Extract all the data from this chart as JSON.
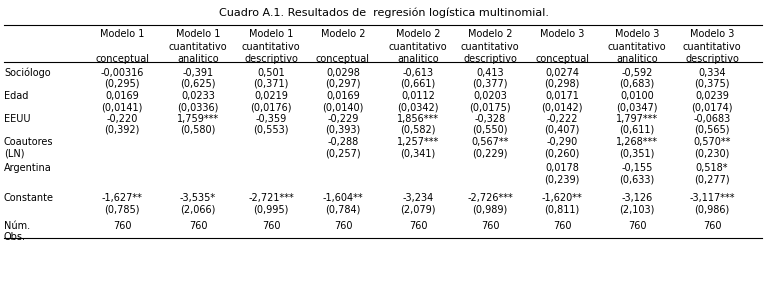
{
  "title": "Cuadro A.1. Resultados de  regresión logística multinomial.",
  "col_headers": [
    [
      "Modelo 1",
      "Modelo 1",
      "Modelo 1",
      "Modelo 2",
      "Modelo 2",
      "Modelo 2",
      "Modelo 3",
      "Modelo 3",
      "Modelo 3"
    ],
    [
      "",
      "cuantitativo",
      "cuantitativo",
      "",
      "cuantitativo",
      "cuantitativo",
      "",
      "cuantitativo",
      "cuantitativo"
    ],
    [
      "conceptual",
      "analitico",
      "descriptivo",
      "conceptual",
      "analitico",
      "descriptivo",
      "conceptual",
      "analitico",
      "descriptivo"
    ]
  ],
  "rows": [
    {
      "label": "Sociólogo",
      "label2": "",
      "values": [
        "-0,00316",
        "-0,391",
        "0,501",
        "0,0298",
        "-0,613",
        "0,413",
        "0,0274",
        "-0,592",
        "0,334"
      ],
      "se": [
        "(0,295)",
        "(0,625)",
        "(0,371)",
        "(0,297)",
        "(0,661)",
        "(0,377)",
        "(0,298)",
        "(0,683)",
        "(0,375)"
      ]
    },
    {
      "label": "Edad",
      "label2": "",
      "values": [
        "0,0169",
        "0,0233",
        "0,0219",
        "0,0169",
        "0,0112",
        "0,0203",
        "0,0171",
        "0,0100",
        "0,0239"
      ],
      "se": [
        "(0,0141)",
        "(0,0336)",
        "(0,0176)",
        "(0,0140)",
        "(0,0342)",
        "(0,0175)",
        "(0,0142)",
        "(0,0347)",
        "(0,0174)"
      ]
    },
    {
      "label": "EEUU",
      "label2": "",
      "values": [
        "-0,220",
        "1,759***",
        "-0,359",
        "-0,229",
        "1,856***",
        "-0,328",
        "-0,222",
        "1,797***",
        "-0,0683"
      ],
      "se": [
        "(0,392)",
        "(0,580)",
        "(0,553)",
        "(0,393)",
        "(0,582)",
        "(0,550)",
        "(0,407)",
        "(0,611)",
        "(0,565)"
      ]
    },
    {
      "label": "Coautores",
      "label2": "(LN)",
      "values": [
        "",
        "",
        "",
        "-0,288",
        "1,257***",
        "0,567**",
        "-0,290",
        "1,268***",
        "0,570**"
      ],
      "se": [
        "",
        "",
        "",
        "(0,257)",
        "(0,341)",
        "(0,229)",
        "(0,260)",
        "(0,351)",
        "(0,230)"
      ]
    },
    {
      "label": "Argentina",
      "label2": "",
      "values": [
        "",
        "",
        "",
        "",
        "",
        "",
        "0,0178",
        "-0,155",
        "0,518*"
      ],
      "se": [
        "",
        "",
        "",
        "",
        "",
        "",
        "(0,239)",
        "(0,633)",
        "(0,277)"
      ]
    },
    {
      "label": "Constante",
      "label2": "",
      "values": [
        "-1,627**",
        "-3,535*",
        "-2,721***",
        "-1,604**",
        "-3,234",
        "-2,726***",
        "-1,620**",
        "-3,126",
        "-3,117***"
      ],
      "se": [
        "(0,785)",
        "(2,066)",
        "(0,995)",
        "(0,784)",
        "(2,079)",
        "(0,989)",
        "(0,811)",
        "(2,103)",
        "(0,986)"
      ]
    },
    {
      "label": "Núm.",
      "label2": "Obs.",
      "values": [
        "760",
        "760",
        "760",
        "760",
        "760",
        "760",
        "760",
        "760",
        "760"
      ],
      "se": [
        "",
        "",
        "",
        "",
        "",
        "",
        "",
        "",
        ""
      ]
    }
  ],
  "bg_color": "#ffffff",
  "text_color": "#000000",
  "font_size": 7.0,
  "title_font_size": 8.0
}
